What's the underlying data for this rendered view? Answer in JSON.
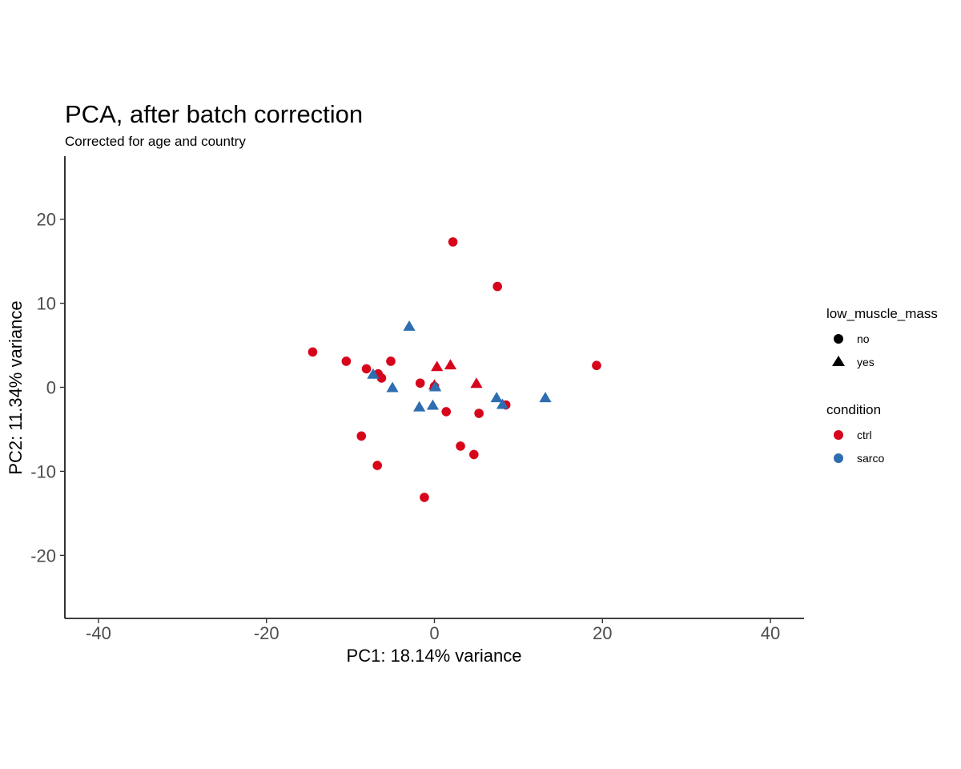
{
  "chart_data": {
    "type": "scatter",
    "title": "PCA, after batch correction",
    "subtitle": "Corrected for age and country",
    "xlabel": "PC1: 18.14% variance",
    "ylabel": "PC2: 11.34% variance",
    "xlim": [
      -44,
      44
    ],
    "ylim": [
      -27.5,
      27.5
    ],
    "x_ticks": [
      -40,
      -20,
      0,
      20,
      40
    ],
    "y_ticks": [
      -20,
      -10,
      0,
      10,
      20
    ],
    "x_tick_labels": [
      "-40",
      "-20",
      "0",
      "20",
      "40"
    ],
    "y_tick_labels": [
      "-20",
      "-10",
      "0",
      "10",
      "20"
    ],
    "grid": false,
    "legend_position": "right",
    "colors": {
      "ctrl": "#D7041B",
      "sarco": "#2E6DB0"
    },
    "legends": {
      "shape": {
        "title": "low_muscle_mass",
        "items": [
          {
            "label": "no",
            "shape": "circle"
          },
          {
            "label": "yes",
            "shape": "triangle"
          }
        ]
      },
      "color": {
        "title": "condition",
        "items": [
          {
            "label": "ctrl",
            "color": "#D7041B"
          },
          {
            "label": "sarco",
            "color": "#2E6DB0"
          }
        ]
      }
    },
    "points": [
      {
        "x": 2.2,
        "y": 17.3,
        "condition": "ctrl",
        "low_muscle_mass": "no"
      },
      {
        "x": 7.5,
        "y": 12.0,
        "condition": "ctrl",
        "low_muscle_mass": "no"
      },
      {
        "x": -14.5,
        "y": 4.2,
        "condition": "ctrl",
        "low_muscle_mass": "no"
      },
      {
        "x": -10.5,
        "y": 3.1,
        "condition": "ctrl",
        "low_muscle_mass": "no"
      },
      {
        "x": -8.1,
        "y": 2.2,
        "condition": "ctrl",
        "low_muscle_mass": "no"
      },
      {
        "x": -6.7,
        "y": 1.6,
        "condition": "ctrl",
        "low_muscle_mass": "no"
      },
      {
        "x": -6.3,
        "y": 1.1,
        "condition": "ctrl",
        "low_muscle_mass": "no"
      },
      {
        "x": -5.2,
        "y": 3.1,
        "condition": "ctrl",
        "low_muscle_mass": "no"
      },
      {
        "x": -1.7,
        "y": 0.5,
        "condition": "ctrl",
        "low_muscle_mass": "no"
      },
      {
        "x": 0.0,
        "y": 0.1,
        "condition": "ctrl",
        "low_muscle_mass": "no"
      },
      {
        "x": 1.4,
        "y": -2.9,
        "condition": "ctrl",
        "low_muscle_mass": "no"
      },
      {
        "x": 5.3,
        "y": -3.1,
        "condition": "ctrl",
        "low_muscle_mass": "no"
      },
      {
        "x": 8.5,
        "y": -2.1,
        "condition": "ctrl",
        "low_muscle_mass": "no"
      },
      {
        "x": 19.3,
        "y": 2.6,
        "condition": "ctrl",
        "low_muscle_mass": "no"
      },
      {
        "x": -8.7,
        "y": -5.8,
        "condition": "ctrl",
        "low_muscle_mass": "no"
      },
      {
        "x": -6.8,
        "y": -9.3,
        "condition": "ctrl",
        "low_muscle_mass": "no"
      },
      {
        "x": 3.1,
        "y": -7.0,
        "condition": "ctrl",
        "low_muscle_mass": "no"
      },
      {
        "x": 4.7,
        "y": -8.0,
        "condition": "ctrl",
        "low_muscle_mass": "no"
      },
      {
        "x": -1.2,
        "y": -13.1,
        "condition": "ctrl",
        "low_muscle_mass": "no"
      },
      {
        "x": 0.3,
        "y": 2.4,
        "condition": "ctrl",
        "low_muscle_mass": "yes"
      },
      {
        "x": 1.9,
        "y": 2.6,
        "condition": "ctrl",
        "low_muscle_mass": "yes"
      },
      {
        "x": 5.0,
        "y": 0.4,
        "condition": "ctrl",
        "low_muscle_mass": "yes"
      },
      {
        "x": 0.0,
        "y": 0.2,
        "condition": "ctrl",
        "low_muscle_mass": "yes"
      },
      {
        "x": -3.0,
        "y": 7.2,
        "condition": "sarco",
        "low_muscle_mass": "yes"
      },
      {
        "x": -7.3,
        "y": 1.5,
        "condition": "sarco",
        "low_muscle_mass": "yes"
      },
      {
        "x": -5.0,
        "y": -0.1,
        "condition": "sarco",
        "low_muscle_mass": "yes"
      },
      {
        "x": 0.1,
        "y": 0.0,
        "condition": "sarco",
        "low_muscle_mass": "yes"
      },
      {
        "x": -1.8,
        "y": -2.4,
        "condition": "sarco",
        "low_muscle_mass": "yes"
      },
      {
        "x": -0.2,
        "y": -2.2,
        "condition": "sarco",
        "low_muscle_mass": "yes"
      },
      {
        "x": 7.4,
        "y": -1.3,
        "condition": "sarco",
        "low_muscle_mass": "yes"
      },
      {
        "x": 8.1,
        "y": -2.1,
        "condition": "sarco",
        "low_muscle_mass": "yes"
      },
      {
        "x": 13.2,
        "y": -1.3,
        "condition": "sarco",
        "low_muscle_mass": "yes"
      }
    ]
  }
}
